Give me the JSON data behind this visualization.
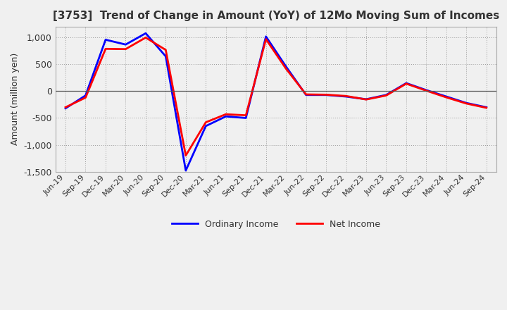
{
  "title": "[3753]  Trend of Change in Amount (YoY) of 12Mo Moving Sum of Incomes",
  "ylabel": "Amount (million yen)",
  "x_labels": [
    "Jun-19",
    "Sep-19",
    "Dec-19",
    "Mar-20",
    "Jun-20",
    "Sep-20",
    "Dec-20",
    "Mar-21",
    "Jun-21",
    "Sep-21",
    "Dec-21",
    "Mar-22",
    "Jun-22",
    "Sep-22",
    "Dec-22",
    "Mar-23",
    "Jun-23",
    "Sep-23",
    "Dec-23",
    "Mar-24",
    "Jun-24",
    "Sep-24"
  ],
  "ordinary_income": [
    -320,
    -80,
    960,
    870,
    1080,
    650,
    -1480,
    -650,
    -470,
    -500,
    1020,
    460,
    -70,
    -70,
    -100,
    -150,
    -70,
    150,
    20,
    -100,
    -220,
    -300
  ],
  "net_income": [
    -300,
    -120,
    790,
    785,
    1000,
    770,
    -1200,
    -580,
    -430,
    -450,
    970,
    420,
    -60,
    -65,
    -90,
    -155,
    -80,
    140,
    10,
    -115,
    -230,
    -310
  ],
  "ordinary_color": "#0000ff",
  "net_color": "#ff0000",
  "ylim": [
    -1500,
    1200
  ],
  "yticks": [
    -1500,
    -1000,
    -500,
    0,
    500,
    1000
  ],
  "background_color": "#f0f0f0",
  "plot_bg_color": "#f0f0f0",
  "grid_color": "#999999",
  "legend_labels": [
    "Ordinary Income",
    "Net Income"
  ],
  "title_color": "#333333",
  "tick_color": "#333333"
}
